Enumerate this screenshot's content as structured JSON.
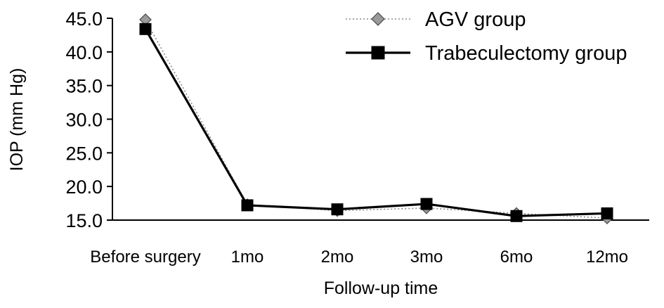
{
  "chart_data": {
    "type": "line",
    "title": "",
    "xlabel": "Follow-up time",
    "ylabel": "IOP (mm Hg)",
    "ylim": [
      15.0,
      45.0
    ],
    "yticks": [
      "15.0",
      "20.0",
      "25.0",
      "30.0",
      "35.0",
      "40.0",
      "45.0"
    ],
    "categories": [
      "Before surgery",
      "1mo",
      "2mo",
      "3mo",
      "6mo",
      "12mo"
    ],
    "grid": false,
    "legend_position": "top-right",
    "series": [
      {
        "name": "AGV group",
        "marker": "diamond",
        "line_style": "dotted",
        "color": "#9a9a9a",
        "values": [
          44.8,
          17.3,
          16.4,
          16.8,
          16.0,
          15.3
        ]
      },
      {
        "name": "Trabeculectomy group",
        "marker": "square",
        "line_style": "solid",
        "color": "#000000",
        "values": [
          43.4,
          17.2,
          16.6,
          17.4,
          15.6,
          16.0
        ]
      }
    ]
  }
}
